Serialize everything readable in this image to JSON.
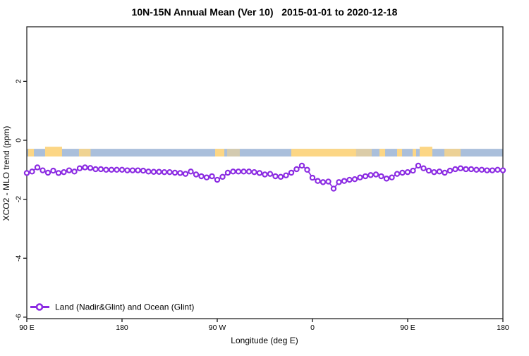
{
  "title": "10N-15N Annual Mean (Ver 10)   2015-01-01 to 2020-12-18",
  "chart_data": {
    "type": "line",
    "title": "10N-15N Annual Mean (Ver 10)   2015-01-01 to 2020-12-18",
    "xlabel": "Longitude (deg E)",
    "ylabel": "XCO2 - MLO trend (ppm)",
    "xlim": [
      90,
      540
    ],
    "ylim": [
      -6.05,
      3.85
    ],
    "grid": false,
    "x_ticks": [
      {
        "pos": 90,
        "label": "90 E"
      },
      {
        "pos": 180,
        "label": "180"
      },
      {
        "pos": 270,
        "label": "90 W"
      },
      {
        "pos": 360,
        "label": "0"
      },
      {
        "pos": 450,
        "label": "90 E"
      },
      {
        "pos": 540,
        "label": "180"
      }
    ],
    "y_ticks": [
      {
        "pos": 2,
        "label": "2"
      },
      {
        "pos": 0,
        "label": "0"
      },
      {
        "pos": -2,
        "label": "-2"
      },
      {
        "pos": -4,
        "label": "-4"
      },
      {
        "pos": -6,
        "label": "-6"
      }
    ],
    "surface_band": {
      "description": "surface-type strip: blue = ocean, yellow = land",
      "y_top": -0.29,
      "y_bottom": -0.55,
      "ocean_color": "#aabfdb",
      "land_color": "#fcd685",
      "land_segments": [
        {
          "from": 91.3,
          "to": 96.7
        },
        {
          "from": 107.3,
          "to": 123.3,
          "tall": true
        },
        {
          "from": 139.3,
          "to": 150.3,
          "opacity": 0.85
        },
        {
          "from": 268.0,
          "to": 276.7
        },
        {
          "from": 279.3,
          "to": 291.3,
          "opacity": 0.5
        },
        {
          "from": 340.0,
          "to": 401.3
        },
        {
          "from": 401.3,
          "to": 416.0,
          "opacity": 0.6
        },
        {
          "from": 423.3,
          "to": 428.7
        },
        {
          "from": 440.0,
          "to": 444.7
        },
        {
          "from": 454.7,
          "to": 458.0
        },
        {
          "from": 461.3,
          "to": 473.3,
          "tall": true
        },
        {
          "from": 484.7,
          "to": 500.0,
          "opacity": 0.8
        }
      ]
    },
    "series": [
      {
        "name": "Land (Nadir&Glint) and Ocean (Glint)",
        "color": "#8B2BE2",
        "marker": "open-circle",
        "x_start": 90,
        "x_step": 5,
        "values": [
          -1.11,
          -1.06,
          -0.92,
          -1.02,
          -1.1,
          -1.03,
          -1.11,
          -1.08,
          -1.02,
          -1.06,
          -0.95,
          -0.92,
          -0.94,
          -0.98,
          -0.98,
          -1.0,
          -1.0,
          -1.0,
          -1.0,
          -1.02,
          -1.02,
          -1.02,
          -1.03,
          -1.06,
          -1.07,
          -1.07,
          -1.08,
          -1.08,
          -1.1,
          -1.11,
          -1.14,
          -1.06,
          -1.16,
          -1.22,
          -1.26,
          -1.22,
          -1.34,
          -1.24,
          -1.1,
          -1.06,
          -1.06,
          -1.06,
          -1.06,
          -1.08,
          -1.11,
          -1.16,
          -1.14,
          -1.22,
          -1.24,
          -1.19,
          -1.1,
          -0.98,
          -0.86,
          -1.0,
          -1.27,
          -1.38,
          -1.42,
          -1.4,
          -1.64,
          -1.42,
          -1.38,
          -1.34,
          -1.32,
          -1.26,
          -1.22,
          -1.18,
          -1.16,
          -1.22,
          -1.3,
          -1.26,
          -1.14,
          -1.1,
          -1.08,
          -1.03,
          -0.86,
          -0.95,
          -1.03,
          -1.08,
          -1.06,
          -1.1,
          -1.03,
          -0.98,
          -0.95,
          -0.98,
          -0.98,
          -1.0,
          -1.0,
          -1.02,
          -1.02,
          -1.0,
          -1.02
        ]
      }
    ],
    "legend": {
      "position": "bottom-left-inside",
      "label": "Land (Nadir&Glint) and Ocean (Glint)"
    }
  }
}
